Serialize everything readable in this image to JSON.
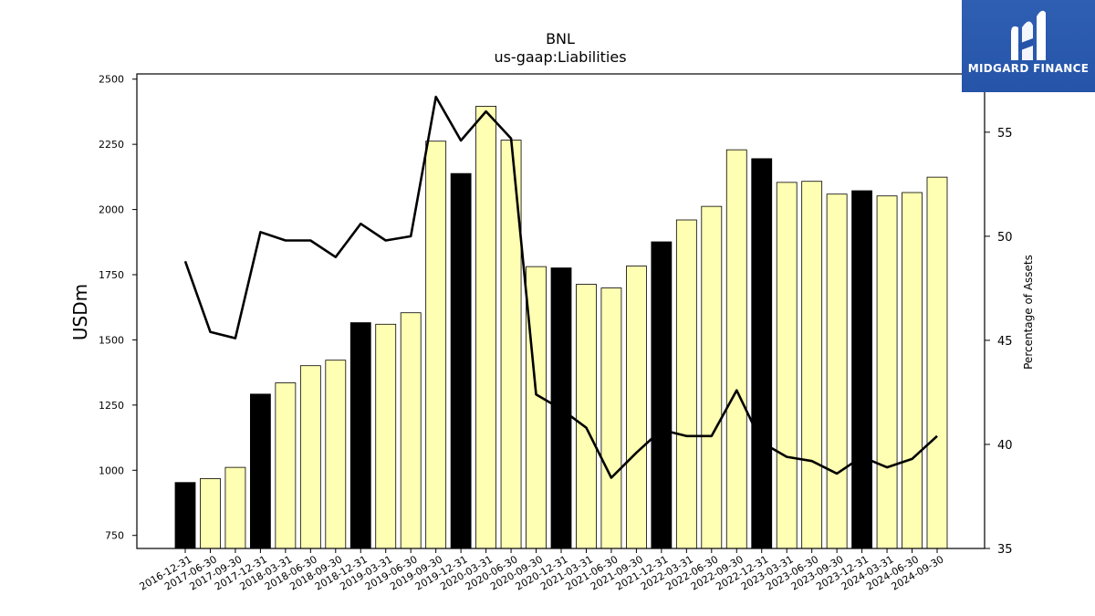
{
  "logo": {
    "text": "MIDGARD FINANCE",
    "color": "#2554a8"
  },
  "chart_data": {
    "type": "bar",
    "title": "BNL",
    "subtitle": "us-gaap:Liabilities",
    "ylabel": "USDm",
    "y2label": "Percentage of Assets",
    "ylim": [
      700,
      2520
    ],
    "y2lim": [
      35,
      57.8
    ],
    "yticks": [
      750,
      1000,
      1250,
      1500,
      1750,
      2000,
      2250,
      2500
    ],
    "y2ticks": [
      35,
      40,
      45,
      50,
      55
    ],
    "grid": false,
    "categories": [
      "2016-12-31",
      "2017-06-30",
      "2017-09-30",
      "2017-12-31",
      "2018-03-31",
      "2018-06-30",
      "2018-09-30",
      "2018-12-31",
      "2019-03-31",
      "2019-06-30",
      "2019-09-30",
      "2019-12-31",
      "2020-03-31",
      "2020-06-30",
      "2020-09-30",
      "2020-12-31",
      "2021-03-31",
      "2021-06-30",
      "2021-09-30",
      "2021-12-31",
      "2022-03-31",
      "2022-06-30",
      "2022-09-30",
      "2022-12-31",
      "2023-03-31",
      "2023-06-30",
      "2023-09-30",
      "2023-12-31",
      "2024-03-31",
      "2024-06-30",
      "2024-09-30"
    ],
    "series": [
      {
        "name": "Liabilities",
        "kind": "bar",
        "values": [
          953,
          968,
          1011,
          1292,
          1335,
          1401,
          1422,
          1566,
          1560,
          1604,
          2262,
          2138,
          2396,
          2266,
          1781,
          1776,
          1713,
          1699,
          1783,
          1876,
          1960,
          2012,
          2229,
          2195,
          2104,
          2108,
          2059,
          2072,
          2052,
          2065,
          2124
        ],
        "colors": [
          "#000000",
          "#ffffb3",
          "#ffffb3",
          "#000000",
          "#ffffb3",
          "#ffffb3",
          "#ffffb3",
          "#000000",
          "#ffffb3",
          "#ffffb3",
          "#ffffb3",
          "#000000",
          "#ffffb3",
          "#ffffb3",
          "#ffffb3",
          "#000000",
          "#ffffb3",
          "#ffffb3",
          "#ffffb3",
          "#000000",
          "#ffffb3",
          "#ffffb3",
          "#ffffb3",
          "#000000",
          "#ffffb3",
          "#ffffb3",
          "#ffffb3",
          "#000000",
          "#ffffb3",
          "#ffffb3",
          "#ffffb3"
        ]
      },
      {
        "name": "Percentage of Assets",
        "kind": "line",
        "axis": "right",
        "color": "#000000",
        "values": [
          48.8,
          45.4,
          45.1,
          50.2,
          49.8,
          49.8,
          49.0,
          50.6,
          49.8,
          50.0,
          56.7,
          54.6,
          56.0,
          54.7,
          42.4,
          41.7,
          40.8,
          38.4,
          39.6,
          40.7,
          40.4,
          40.4,
          42.6,
          40.1,
          39.4,
          39.2,
          38.6,
          39.4,
          38.9,
          39.3,
          40.4
        ]
      }
    ]
  }
}
